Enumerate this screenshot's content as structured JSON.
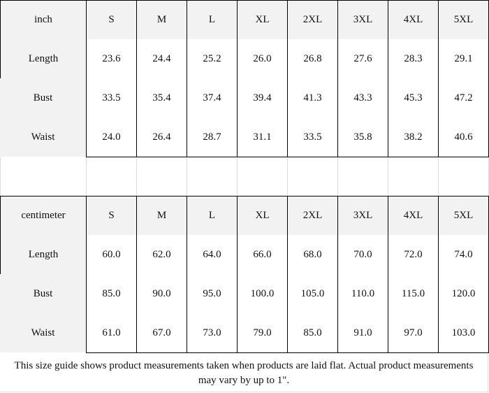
{
  "tables": [
    {
      "unit": "inch",
      "sizes": [
        "S",
        "M",
        "L",
        "XL",
        "2XL",
        "3XL",
        "4XL",
        "5XL"
      ],
      "rows": [
        {
          "label": "Length",
          "values": [
            "23.6",
            "24.4",
            "25.2",
            "26.0",
            "26.8",
            "27.6",
            "28.3",
            "29.1"
          ]
        },
        {
          "label": "Bust",
          "values": [
            "33.5",
            "35.4",
            "37.4",
            "39.4",
            "41.3",
            "43.3",
            "45.3",
            "47.2"
          ]
        },
        {
          "label": "Waist",
          "values": [
            "24.0",
            "26.4",
            "28.7",
            "31.1",
            "33.5",
            "35.8",
            "38.2",
            "40.6"
          ]
        }
      ]
    },
    {
      "unit": "centimeter",
      "sizes": [
        "S",
        "M",
        "L",
        "XL",
        "2XL",
        "3XL",
        "4XL",
        "5XL"
      ],
      "rows": [
        {
          "label": "Length",
          "values": [
            "60.0",
            "62.0",
            "64.0",
            "66.0",
            "68.0",
            "70.0",
            "72.0",
            "74.0"
          ]
        },
        {
          "label": "Bust",
          "values": [
            "85.0",
            "90.0",
            "95.0",
            "100.0",
            "105.0",
            "110.0",
            "115.0",
            "120.0"
          ]
        },
        {
          "label": "Waist",
          "values": [
            "61.0",
            "67.0",
            "73.0",
            "79.0",
            "85.0",
            "91.0",
            "97.0",
            "103.0"
          ]
        }
      ]
    }
  ],
  "footer": {
    "note": "This size guide shows product measurements taken when products are laid flat. Actual product measurements may vary by up to 1\"."
  }
}
